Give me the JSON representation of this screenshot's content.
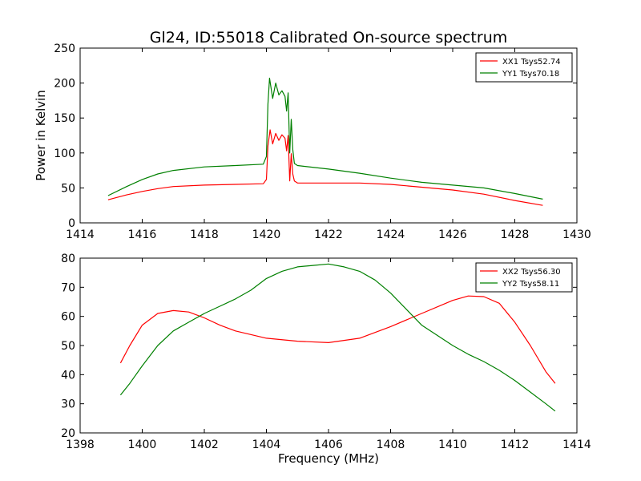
{
  "figure": {
    "title": "Gl24, ID:55018 Calibrated On-source spectrum",
    "ylabel": "Power in Kelvin",
    "xlabel": "Frequency (MHz)"
  },
  "chart_data": [
    {
      "type": "line",
      "xlim": [
        1414,
        1430
      ],
      "ylim": [
        0,
        250
      ],
      "xticks": [
        1414,
        1416,
        1418,
        1420,
        1422,
        1424,
        1426,
        1428,
        1430
      ],
      "yticks": [
        0,
        50,
        100,
        150,
        200,
        250
      ],
      "grid": false,
      "legend_position": "top-right",
      "series": [
        {
          "name": "XX1 Tsys52.74",
          "color": "#ff0000",
          "x": [
            1414.9,
            1415.5,
            1416.0,
            1416.5,
            1417.0,
            1418.0,
            1419.0,
            1419.9,
            1420.0,
            1420.05,
            1420.12,
            1420.2,
            1420.3,
            1420.4,
            1420.5,
            1420.6,
            1420.65,
            1420.7,
            1420.75,
            1420.8,
            1420.85,
            1420.9,
            1421.0,
            1422.0,
            1423.0,
            1424.0,
            1425.0,
            1426.0,
            1427.0,
            1428.0,
            1428.9
          ],
          "y": [
            33,
            40,
            45,
            49,
            52,
            54,
            55,
            56,
            62,
            110,
            133,
            113,
            128,
            118,
            126,
            121,
            103,
            125,
            60,
            99,
            70,
            60,
            57,
            57,
            57,
            55,
            51,
            47,
            41,
            32,
            25
          ]
        },
        {
          "name": "YY1 Tsys70.18",
          "color": "#008000",
          "x": [
            1414.9,
            1415.5,
            1416.0,
            1416.5,
            1417.0,
            1418.0,
            1419.0,
            1419.9,
            1420.0,
            1420.05,
            1420.1,
            1420.2,
            1420.3,
            1420.4,
            1420.5,
            1420.6,
            1420.65,
            1420.7,
            1420.75,
            1420.8,
            1420.85,
            1420.9,
            1421.0,
            1422.0,
            1423.0,
            1424.0,
            1425.0,
            1426.0,
            1427.0,
            1428.0,
            1428.9
          ],
          "y": [
            39,
            52,
            62,
            70,
            75,
            80,
            82,
            84,
            95,
            170,
            207,
            178,
            200,
            183,
            189,
            181,
            160,
            186,
            100,
            148,
            105,
            85,
            82,
            77,
            71,
            64,
            58,
            54,
            50,
            42,
            34
          ]
        }
      ]
    },
    {
      "type": "line",
      "xlim": [
        1398,
        1414
      ],
      "ylim": [
        20,
        80
      ],
      "xticks": [
        1398,
        1400,
        1402,
        1404,
        1406,
        1408,
        1410,
        1412,
        1414
      ],
      "yticks": [
        20,
        30,
        40,
        50,
        60,
        70,
        80
      ],
      "grid": false,
      "legend_position": "top-right",
      "series": [
        {
          "name": "XX2 Tsys56.30",
          "color": "#ff0000",
          "x": [
            1399.3,
            1399.6,
            1400.0,
            1400.5,
            1401.0,
            1401.5,
            1402.0,
            1402.5,
            1403.0,
            1404.0,
            1405.0,
            1406.0,
            1407.0,
            1408.0,
            1409.0,
            1410.0,
            1410.5,
            1411.0,
            1411.5,
            1412.0,
            1412.5,
            1413.0,
            1413.3
          ],
          "y": [
            44,
            50,
            57,
            61,
            62,
            61.5,
            59.5,
            57,
            55,
            52.5,
            51.5,
            51,
            52.5,
            56.5,
            61,
            65.5,
            67,
            66.8,
            64.5,
            58,
            50,
            41,
            37
          ]
        },
        {
          "name": "YY2 Tsys58.11",
          "color": "#008000",
          "x": [
            1399.3,
            1399.6,
            1400.0,
            1400.5,
            1401.0,
            1401.5,
            1402.0,
            1402.5,
            1403.0,
            1403.5,
            1404.0,
            1404.5,
            1405.0,
            1405.5,
            1406.0,
            1406.5,
            1407.0,
            1407.5,
            1408.0,
            1408.5,
            1409.0,
            1409.5,
            1410.0,
            1410.5,
            1411.0,
            1411.5,
            1412.0,
            1412.5,
            1413.0,
            1413.3
          ],
          "y": [
            33,
            37,
            43,
            50,
            55,
            58,
            61,
            63.5,
            66,
            69,
            73,
            75.5,
            77,
            77.5,
            78,
            77,
            75.5,
            72.5,
            68,
            62.5,
            57,
            53.5,
            50,
            47,
            44.5,
            41.5,
            38,
            34,
            30,
            27.5
          ]
        }
      ]
    }
  ]
}
